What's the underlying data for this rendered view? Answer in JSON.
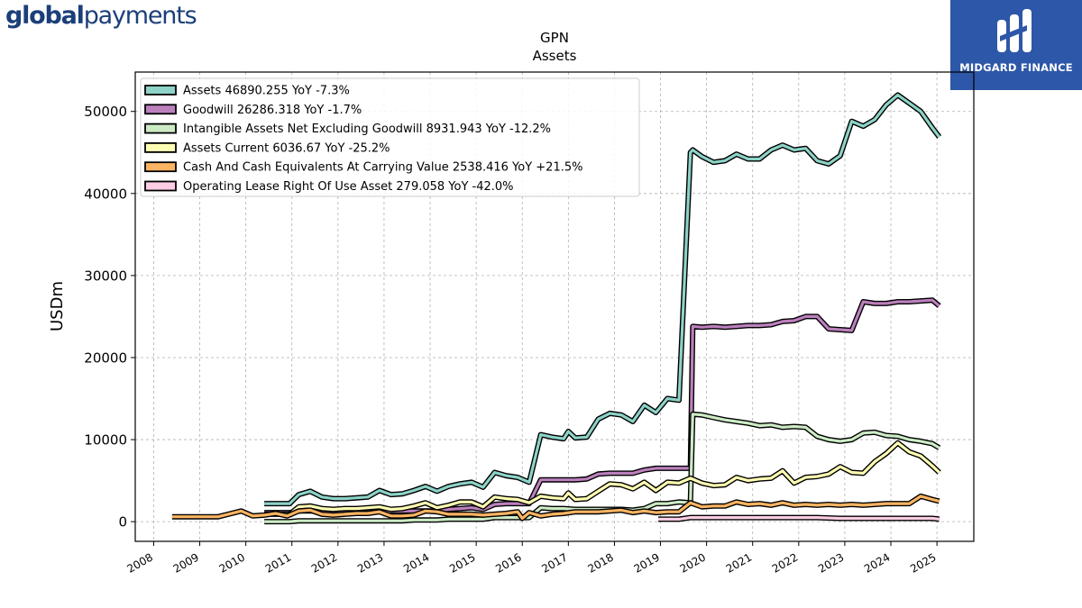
{
  "branding": {
    "left_logo_bold": "global",
    "left_logo_regular": "payments",
    "right_logo_text": "MIDGARD FINANCE",
    "left_logo_color": "#1b3f7a",
    "right_logo_bg": "#2d57a8"
  },
  "chart_data": {
    "type": "line",
    "title": "GPN",
    "subtitle": "Assets",
    "xlabel": "",
    "ylabel": "USDm",
    "xlim": [
      2007.6,
      2025.8
    ],
    "ylim": [
      -2400,
      54800
    ],
    "yticks": [
      0,
      10000,
      20000,
      30000,
      40000,
      50000
    ],
    "xticks": [
      2008,
      2009,
      2010,
      2011,
      2012,
      2013,
      2014,
      2015,
      2016,
      2017,
      2018,
      2019,
      2020,
      2021,
      2022,
      2023,
      2024,
      2025
    ],
    "grid": true,
    "legend_position": "top-left",
    "series": [
      {
        "name": "Assets",
        "legend": "Assets  46890.255 YoY -7.3%",
        "color": "#8dd3c7",
        "x": [
          2010.4,
          2010.95,
          2011.15,
          2011.4,
          2011.65,
          2011.9,
          2012.15,
          2012.4,
          2012.65,
          2012.9,
          2013.15,
          2013.4,
          2013.65,
          2013.9,
          2014.15,
          2014.4,
          2014.65,
          2014.9,
          2015.15,
          2015.4,
          2015.65,
          2015.9,
          2016.15,
          2016.4,
          2016.65,
          2016.9,
          2017.0,
          2017.15,
          2017.4,
          2017.65,
          2017.9,
          2018.15,
          2018.4,
          2018.65,
          2018.9,
          2019.15,
          2019.4,
          2019.65,
          2019.7,
          2019.9,
          2020.15,
          2020.4,
          2020.65,
          2020.9,
          2021.15,
          2021.4,
          2021.65,
          2021.9,
          2022.15,
          2022.4,
          2022.65,
          2022.9,
          2023.15,
          2023.4,
          2023.65,
          2023.9,
          2024.15,
          2024.4,
          2024.65,
          2024.9,
          2025.05
        ],
        "y": [
          2200,
          2200,
          3300,
          3700,
          3000,
          2800,
          2800,
          2900,
          3000,
          3800,
          3300,
          3400,
          3800,
          4300,
          3700,
          4300,
          4600,
          4800,
          4200,
          6000,
          5600,
          5400,
          4800,
          10600,
          10300,
          10100,
          11000,
          10200,
          10300,
          12500,
          13200,
          13000,
          12200,
          14200,
          13300,
          15000,
          14800,
          45000,
          45300,
          44500,
          43800,
          44000,
          44800,
          44200,
          44200,
          45300,
          45900,
          45300,
          45500,
          44000,
          43600,
          44600,
          48800,
          48200,
          49000,
          50800,
          52000,
          51000,
          50000,
          48000,
          46900
        ]
      },
      {
        "name": "Goodwill",
        "legend": "Goodwill  26286.318 YoY -1.7%",
        "color": "#bc80bd",
        "x": [
          2010.4,
          2010.95,
          2011.15,
          2011.4,
          2011.65,
          2011.9,
          2012.15,
          2012.4,
          2012.65,
          2012.9,
          2013.15,
          2013.4,
          2013.65,
          2013.9,
          2014.15,
          2014.4,
          2014.65,
          2014.9,
          2015.15,
          2015.4,
          2015.65,
          2015.9,
          2016.15,
          2016.4,
          2016.65,
          2016.9,
          2017.15,
          2017.4,
          2017.65,
          2017.9,
          2018.15,
          2018.4,
          2018.65,
          2018.9,
          2019.15,
          2019.4,
          2019.65,
          2019.7,
          2019.9,
          2020.15,
          2020.4,
          2020.65,
          2020.9,
          2021.15,
          2021.4,
          2021.65,
          2021.9,
          2022.15,
          2022.4,
          2022.65,
          2022.9,
          2023.15,
          2023.4,
          2023.65,
          2023.9,
          2024.15,
          2024.4,
          2024.65,
          2024.9,
          2025.05
        ],
        "y": [
          1100,
          1100,
          1300,
          1300,
          1300,
          1300,
          1300,
          1300,
          1300,
          1300,
          1300,
          1300,
          1300,
          1300,
          1300,
          1500,
          1600,
          1700,
          1500,
          2100,
          2200,
          2200,
          2200,
          5100,
          5100,
          5100,
          5100,
          5200,
          5800,
          5900,
          5900,
          5900,
          6300,
          6500,
          6500,
          6500,
          6500,
          23800,
          23700,
          23800,
          23700,
          23800,
          23900,
          23900,
          24000,
          24400,
          24500,
          25000,
          25000,
          23500,
          23400,
          23300,
          26800,
          26600,
          26600,
          26800,
          26800,
          26900,
          27000,
          26300
        ]
      },
      {
        "name": "Intangible Assets Net Excluding Goodwill",
        "legend": "Intangible Assets Net Excluding Goodwill  8931.943 YoY -12.2%",
        "color": "#ccebc5",
        "x": [
          2010.4,
          2010.95,
          2011.15,
          2011.4,
          2011.65,
          2011.9,
          2012.15,
          2012.4,
          2012.65,
          2012.9,
          2013.15,
          2013.4,
          2013.65,
          2013.9,
          2014.15,
          2014.4,
          2014.65,
          2014.9,
          2015.15,
          2015.4,
          2015.65,
          2015.9,
          2016.15,
          2016.4,
          2016.65,
          2016.9,
          2017.15,
          2017.4,
          2017.65,
          2017.9,
          2018.15,
          2018.4,
          2018.65,
          2018.9,
          2019.15,
          2019.4,
          2019.65,
          2019.7,
          2019.9,
          2020.15,
          2020.4,
          2020.65,
          2020.9,
          2021.15,
          2021.4,
          2021.65,
          2021.9,
          2022.15,
          2022.4,
          2022.65,
          2022.9,
          2023.15,
          2023.4,
          2023.65,
          2023.9,
          2024.15,
          2024.4,
          2024.65,
          2024.9,
          2025.05
        ],
        "y": [
          0,
          0,
          100,
          100,
          100,
          100,
          100,
          100,
          100,
          100,
          100,
          100,
          200,
          200,
          200,
          300,
          300,
          300,
          300,
          500,
          500,
          500,
          500,
          1700,
          1600,
          1600,
          1500,
          1500,
          1500,
          1500,
          1500,
          1400,
          1600,
          2200,
          2200,
          2400,
          2300,
          13100,
          13000,
          12700,
          12400,
          12200,
          12000,
          11700,
          11800,
          11500,
          11600,
          11500,
          10400,
          10000,
          9800,
          10000,
          10800,
          10900,
          10500,
          10400,
          10000,
          9800,
          9500,
          9000
        ]
      },
      {
        "name": "Assets Current",
        "legend": "Assets Current  6036.67 YoY -25.2%",
        "color": "#ffffb3",
        "x": [
          2010.4,
          2010.95,
          2011.15,
          2011.4,
          2011.65,
          2011.9,
          2012.15,
          2012.4,
          2012.65,
          2012.9,
          2013.15,
          2013.4,
          2013.65,
          2013.9,
          2014.15,
          2014.4,
          2014.65,
          2014.9,
          2015.15,
          2015.4,
          2015.65,
          2015.9,
          2016.15,
          2016.4,
          2016.65,
          2016.9,
          2017.0,
          2017.15,
          2017.4,
          2017.65,
          2017.9,
          2018.15,
          2018.4,
          2018.65,
          2018.9,
          2019.15,
          2019.4,
          2019.65,
          2019.9,
          2020.15,
          2020.4,
          2020.65,
          2020.9,
          2021.15,
          2021.4,
          2021.65,
          2021.9,
          2022.15,
          2022.4,
          2022.65,
          2022.9,
          2023.15,
          2023.4,
          2023.65,
          2023.9,
          2024.15,
          2024.4,
          2024.65,
          2024.9,
          2025.05
        ],
        "y": [
          900,
          900,
          1800,
          1900,
          1600,
          1500,
          1600,
          1600,
          1700,
          1800,
          1500,
          1600,
          1900,
          2300,
          1700,
          2000,
          2400,
          2400,
          1800,
          3000,
          2800,
          2700,
          2300,
          3100,
          2900,
          2800,
          3500,
          2700,
          2800,
          3700,
          4600,
          4500,
          4000,
          4800,
          3800,
          4800,
          4700,
          5300,
          4700,
          4400,
          4500,
          5400,
          5000,
          5200,
          5300,
          6200,
          4700,
          5400,
          5500,
          5800,
          6700,
          6000,
          5900,
          7300,
          8300,
          9600,
          8500,
          8000,
          6800,
          6000
        ]
      },
      {
        "name": "Cash And Cash Equivalents At Carrying Value",
        "legend": "Cash And Cash Equivalents At Carrying Value  2538.416 YoY +21.5%",
        "color": "#fdb462",
        "x": [
          2008.4,
          2009.4,
          2009.9,
          2010.15,
          2010.4,
          2010.65,
          2010.9,
          2011.15,
          2011.4,
          2011.65,
          2011.9,
          2012.15,
          2012.4,
          2012.65,
          2012.9,
          2013.15,
          2013.4,
          2013.65,
          2013.9,
          2014.15,
          2014.4,
          2014.65,
          2014.9,
          2015.15,
          2015.4,
          2015.65,
          2015.9,
          2016.0,
          2016.15,
          2016.4,
          2016.65,
          2016.9,
          2017.15,
          2017.4,
          2017.65,
          2017.9,
          2018.15,
          2018.4,
          2018.65,
          2018.9,
          2019.15,
          2019.4,
          2019.65,
          2019.9,
          2020.15,
          2020.4,
          2020.65,
          2020.9,
          2021.15,
          2021.4,
          2021.65,
          2021.9,
          2022.15,
          2022.4,
          2022.65,
          2022.9,
          2023.15,
          2023.4,
          2023.65,
          2023.9,
          2024.15,
          2024.4,
          2024.65,
          2024.9,
          2025.05
        ],
        "y": [
          600,
          600,
          1300,
          700,
          800,
          1000,
          700,
          1300,
          1400,
          900,
          800,
          900,
          1000,
          1000,
          1200,
          700,
          700,
          800,
          1300,
          1200,
          900,
          900,
          900,
          800,
          900,
          1000,
          1200,
          400,
          1100,
          700,
          900,
          1000,
          1200,
          1200,
          1200,
          1300,
          1400,
          1100,
          1300,
          1100,
          1200,
          1200,
          2300,
          1800,
          1900,
          1900,
          2400,
          2100,
          2200,
          2000,
          2300,
          2000,
          2100,
          2000,
          2100,
          2000,
          2100,
          2000,
          2100,
          2200,
          2200,
          2200,
          3100,
          2700,
          2500
        ]
      },
      {
        "name": "Operating Lease Right Of Use Asset",
        "legend": "Operating Lease Right Of Use Asset  279.058 YoY -42.0%",
        "color": "#fccde5",
        "x": [
          2018.95,
          2019.4,
          2019.65,
          2019.9,
          2020.4,
          2020.9,
          2021.4,
          2021.9,
          2022.4,
          2022.9,
          2023.4,
          2023.9,
          2024.4,
          2024.9,
          2025.05
        ],
        "y": [
          300,
          300,
          500,
          500,
          500,
          500,
          500,
          500,
          500,
          400,
          400,
          400,
          400,
          400,
          300
        ]
      }
    ]
  }
}
